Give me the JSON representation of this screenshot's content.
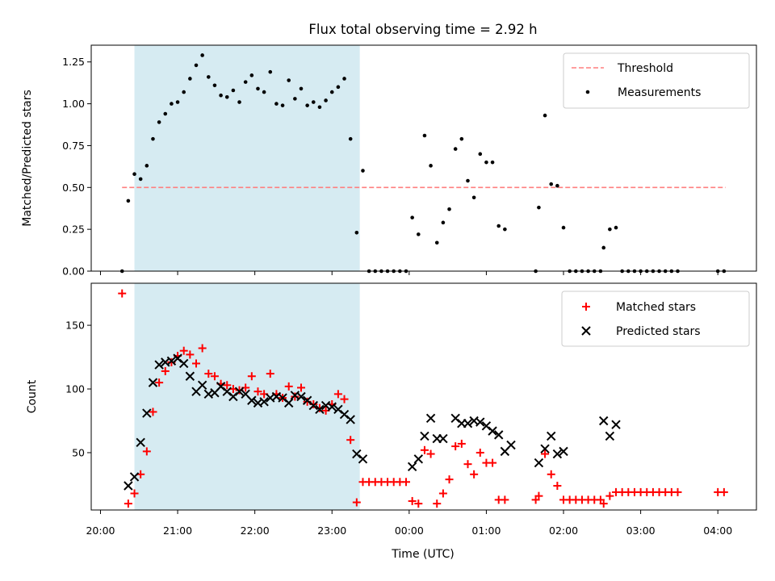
{
  "chart_data": {
    "title": "Flux total observing time = 2.92 h",
    "xlabel": "Time (UTC)",
    "x_unit": "hours since 20:00 UTC",
    "x_ticks": [
      {
        "v": 0,
        "label": "20:00"
      },
      {
        "v": 1,
        "label": "21:00"
      },
      {
        "v": 2,
        "label": "22:00"
      },
      {
        "v": 3,
        "label": "23:00"
      },
      {
        "v": 4,
        "label": "00:00"
      },
      {
        "v": 5,
        "label": "01:00"
      },
      {
        "v": 6,
        "label": "02:00"
      },
      {
        "v": 7,
        "label": "03:00"
      },
      {
        "v": 8,
        "label": "04:00"
      }
    ],
    "xlim": [
      -0.12,
      8.5
    ],
    "observing_window": [
      0.44,
      3.36
    ],
    "top": {
      "type": "scatter",
      "ylabel": "Matched/Predicted stars",
      "ylim": [
        0,
        1.35
      ],
      "y_ticks": [
        {
          "v": 0,
          "label": "0.00"
        },
        {
          "v": 0.25,
          "label": "0.25"
        },
        {
          "v": 0.5,
          "label": "0.50"
        },
        {
          "v": 0.75,
          "label": "0.75"
        },
        {
          "v": 1.0,
          "label": "1.00"
        },
        {
          "v": 1.25,
          "label": "1.25"
        }
      ],
      "threshold": {
        "name": "Threshold",
        "value": 0.5,
        "x_range": [
          0.28,
          8.1
        ],
        "color": "#ff7f7f"
      },
      "measurements": {
        "name": "Measurements",
        "color": "#000000",
        "points": [
          [
            0.28,
            0.0
          ],
          [
            0.36,
            0.42
          ],
          [
            0.44,
            0.58
          ],
          [
            0.52,
            0.55
          ],
          [
            0.6,
            0.63
          ],
          [
            0.68,
            0.79
          ],
          [
            0.76,
            0.89
          ],
          [
            0.84,
            0.94
          ],
          [
            0.92,
            1.0
          ],
          [
            1.0,
            1.01
          ],
          [
            1.08,
            1.07
          ],
          [
            1.16,
            1.15
          ],
          [
            1.24,
            1.23
          ],
          [
            1.32,
            1.29
          ],
          [
            1.4,
            1.16
          ],
          [
            1.48,
            1.11
          ],
          [
            1.56,
            1.05
          ],
          [
            1.64,
            1.04
          ],
          [
            1.72,
            1.08
          ],
          [
            1.8,
            1.01
          ],
          [
            1.88,
            1.13
          ],
          [
            1.96,
            1.17
          ],
          [
            2.04,
            1.09
          ],
          [
            2.12,
            1.07
          ],
          [
            2.2,
            1.19
          ],
          [
            2.28,
            1.0
          ],
          [
            2.36,
            0.99
          ],
          [
            2.44,
            1.14
          ],
          [
            2.52,
            1.03
          ],
          [
            2.6,
            1.09
          ],
          [
            2.68,
            0.99
          ],
          [
            2.76,
            1.01
          ],
          [
            2.84,
            0.98
          ],
          [
            2.92,
            1.02
          ],
          [
            3.0,
            1.07
          ],
          [
            3.08,
            1.1
          ],
          [
            3.16,
            1.15
          ],
          [
            3.24,
            0.79
          ],
          [
            3.32,
            0.23
          ],
          [
            3.4,
            0.6
          ],
          [
            3.48,
            0.0
          ],
          [
            3.56,
            0.0
          ],
          [
            3.64,
            0.0
          ],
          [
            3.72,
            0.0
          ],
          [
            3.8,
            0.0
          ],
          [
            3.88,
            0.0
          ],
          [
            3.96,
            0.0
          ],
          [
            4.04,
            0.32
          ],
          [
            4.12,
            0.22
          ],
          [
            4.2,
            0.81
          ],
          [
            4.28,
            0.63
          ],
          [
            4.36,
            0.17
          ],
          [
            4.44,
            0.29
          ],
          [
            4.52,
            0.37
          ],
          [
            4.6,
            0.73
          ],
          [
            4.68,
            0.79
          ],
          [
            4.76,
            0.54
          ],
          [
            4.84,
            0.44
          ],
          [
            4.92,
            0.7
          ],
          [
            5.0,
            0.65
          ],
          [
            5.08,
            0.65
          ],
          [
            5.16,
            0.27
          ],
          [
            5.24,
            0.25
          ],
          [
            5.64,
            0.0
          ],
          [
            5.68,
            0.38
          ],
          [
            5.76,
            0.93
          ],
          [
            5.84,
            0.52
          ],
          [
            5.92,
            0.51
          ],
          [
            6.0,
            0.26
          ],
          [
            6.08,
            0.0
          ],
          [
            6.16,
            0.0
          ],
          [
            6.24,
            0.0
          ],
          [
            6.32,
            0.0
          ],
          [
            6.4,
            0.0
          ],
          [
            6.48,
            0.0
          ],
          [
            6.52,
            0.14
          ],
          [
            6.6,
            0.25
          ],
          [
            6.68,
            0.26
          ],
          [
            6.76,
            0.0
          ],
          [
            6.84,
            0.0
          ],
          [
            6.92,
            0.0
          ],
          [
            7.0,
            0.0
          ],
          [
            7.08,
            0.0
          ],
          [
            7.16,
            0.0
          ],
          [
            7.24,
            0.0
          ],
          [
            7.32,
            0.0
          ],
          [
            7.4,
            0.0
          ],
          [
            7.48,
            0.0
          ],
          [
            8.0,
            0.0
          ],
          [
            8.08,
            0.0
          ]
        ]
      },
      "legend_position": "upper right"
    },
    "bottom": {
      "type": "scatter",
      "ylabel": "Count",
      "ylim": [
        5,
        183
      ],
      "y_ticks": [
        {
          "v": 50,
          "label": "50"
        },
        {
          "v": 100,
          "label": "100"
        },
        {
          "v": 150,
          "label": "150"
        }
      ],
      "matched": {
        "name": "Matched stars",
        "color": "#ff0000",
        "marker": "plus",
        "points": [
          [
            0.28,
            175
          ],
          [
            0.36,
            10
          ],
          [
            0.44,
            18
          ],
          [
            0.52,
            33
          ],
          [
            0.6,
            51
          ],
          [
            0.68,
            82
          ],
          [
            0.76,
            105
          ],
          [
            0.84,
            114
          ],
          [
            0.92,
            121
          ],
          [
            1.0,
            126
          ],
          [
            1.08,
            130
          ],
          [
            1.16,
            127
          ],
          [
            1.24,
            120
          ],
          [
            1.32,
            132
          ],
          [
            1.4,
            112
          ],
          [
            1.48,
            110
          ],
          [
            1.56,
            104
          ],
          [
            1.64,
            103
          ],
          [
            1.72,
            100
          ],
          [
            1.8,
            99
          ],
          [
            1.88,
            101
          ],
          [
            1.96,
            110
          ],
          [
            2.04,
            98
          ],
          [
            2.12,
            96
          ],
          [
            2.2,
            112
          ],
          [
            2.28,
            96
          ],
          [
            2.36,
            93
          ],
          [
            2.44,
            102
          ],
          [
            2.52,
            94
          ],
          [
            2.6,
            101
          ],
          [
            2.68,
            90
          ],
          [
            2.76,
            88
          ],
          [
            2.84,
            85
          ],
          [
            2.92,
            83
          ],
          [
            3.0,
            88
          ],
          [
            3.08,
            96
          ],
          [
            3.16,
            92
          ],
          [
            3.24,
            60
          ],
          [
            3.32,
            11
          ],
          [
            3.4,
            27
          ],
          [
            3.48,
            27
          ],
          [
            3.56,
            27
          ],
          [
            3.64,
            27
          ],
          [
            3.72,
            27
          ],
          [
            3.8,
            27
          ],
          [
            3.88,
            27
          ],
          [
            3.96,
            27
          ],
          [
            4.04,
            12
          ],
          [
            4.12,
            10
          ],
          [
            4.2,
            52
          ],
          [
            4.28,
            49
          ],
          [
            4.36,
            10
          ],
          [
            4.44,
            18
          ],
          [
            4.52,
            29
          ],
          [
            4.6,
            55
          ],
          [
            4.68,
            57
          ],
          [
            4.76,
            41
          ],
          [
            4.84,
            33
          ],
          [
            4.92,
            50
          ],
          [
            5.0,
            42
          ],
          [
            5.08,
            42
          ],
          [
            5.16,
            13
          ],
          [
            5.24,
            13
          ],
          [
            5.64,
            13
          ],
          [
            5.68,
            16
          ],
          [
            5.76,
            49
          ],
          [
            5.84,
            33
          ],
          [
            5.92,
            24
          ],
          [
            6.0,
            13
          ],
          [
            6.08,
            13
          ],
          [
            6.16,
            13
          ],
          [
            6.24,
            13
          ],
          [
            6.32,
            13
          ],
          [
            6.4,
            13
          ],
          [
            6.48,
            13
          ],
          [
            6.52,
            10
          ],
          [
            6.6,
            16
          ],
          [
            6.68,
            19
          ],
          [
            6.76,
            19
          ],
          [
            6.84,
            19
          ],
          [
            6.92,
            19
          ],
          [
            7.0,
            19
          ],
          [
            7.08,
            19
          ],
          [
            7.16,
            19
          ],
          [
            7.24,
            19
          ],
          [
            7.32,
            19
          ],
          [
            7.4,
            19
          ],
          [
            7.48,
            19
          ],
          [
            8.0,
            19
          ],
          [
            8.08,
            19
          ]
        ]
      },
      "predicted": {
        "name": "Predicted stars",
        "color": "#000000",
        "marker": "x",
        "points": [
          [
            0.36,
            24
          ],
          [
            0.44,
            31
          ],
          [
            0.52,
            58
          ],
          [
            0.6,
            81
          ],
          [
            0.68,
            105
          ],
          [
            0.76,
            119
          ],
          [
            0.84,
            121
          ],
          [
            0.92,
            122
          ],
          [
            1.0,
            124
          ],
          [
            1.08,
            120
          ],
          [
            1.16,
            110
          ],
          [
            1.24,
            98
          ],
          [
            1.32,
            103
          ],
          [
            1.4,
            96
          ],
          [
            1.48,
            97
          ],
          [
            1.56,
            102
          ],
          [
            1.64,
            98
          ],
          [
            1.72,
            94
          ],
          [
            1.8,
            98
          ],
          [
            1.88,
            96
          ],
          [
            1.96,
            91
          ],
          [
            2.04,
            89
          ],
          [
            2.12,
            90
          ],
          [
            2.2,
            93
          ],
          [
            2.28,
            94
          ],
          [
            2.36,
            93
          ],
          [
            2.44,
            89
          ],
          [
            2.52,
            95
          ],
          [
            2.6,
            94
          ],
          [
            2.68,
            91
          ],
          [
            2.76,
            87
          ],
          [
            2.84,
            84
          ],
          [
            2.92,
            87
          ],
          [
            3.0,
            86
          ],
          [
            3.08,
            84
          ],
          [
            3.16,
            80
          ],
          [
            3.24,
            76
          ],
          [
            3.32,
            49
          ],
          [
            3.4,
            45
          ],
          [
            4.04,
            39
          ],
          [
            4.12,
            45
          ],
          [
            4.2,
            63
          ],
          [
            4.28,
            77
          ],
          [
            4.36,
            61
          ],
          [
            4.44,
            61
          ],
          [
            4.6,
            77
          ],
          [
            4.68,
            73
          ],
          [
            4.76,
            73
          ],
          [
            4.84,
            75
          ],
          [
            4.92,
            74
          ],
          [
            5.0,
            71
          ],
          [
            5.08,
            67
          ],
          [
            5.16,
            64
          ],
          [
            5.24,
            51
          ],
          [
            5.32,
            56
          ],
          [
            5.68,
            42
          ],
          [
            5.76,
            53
          ],
          [
            5.84,
            63
          ],
          [
            5.92,
            49
          ],
          [
            6.0,
            51
          ],
          [
            6.52,
            75
          ],
          [
            6.6,
            63
          ],
          [
            6.68,
            72
          ]
        ]
      },
      "legend_position": "upper right"
    },
    "window_color": "#add8e6"
  }
}
